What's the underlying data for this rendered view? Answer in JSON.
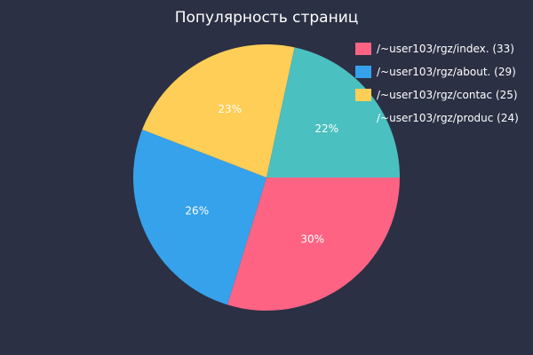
{
  "chart_data": {
    "type": "pie",
    "title": "Популярность страниц",
    "legend_position": "top-right",
    "slices": [
      {
        "label": "/~user103/rgz/index.",
        "value": 33,
        "percent_label": "30%",
        "color": "#ff6384"
      },
      {
        "label": "/~user103/rgz/about.",
        "value": 29,
        "percent_label": "26%",
        "color": "#36a2eb"
      },
      {
        "label": "/~user103/rgz/contac",
        "value": 25,
        "percent_label": "23%",
        "color": "#ffce56"
      },
      {
        "label": "/~user103/rgz/produc",
        "value": 24,
        "percent_label": "22%",
        "color": "#4bc0c0"
      }
    ]
  }
}
